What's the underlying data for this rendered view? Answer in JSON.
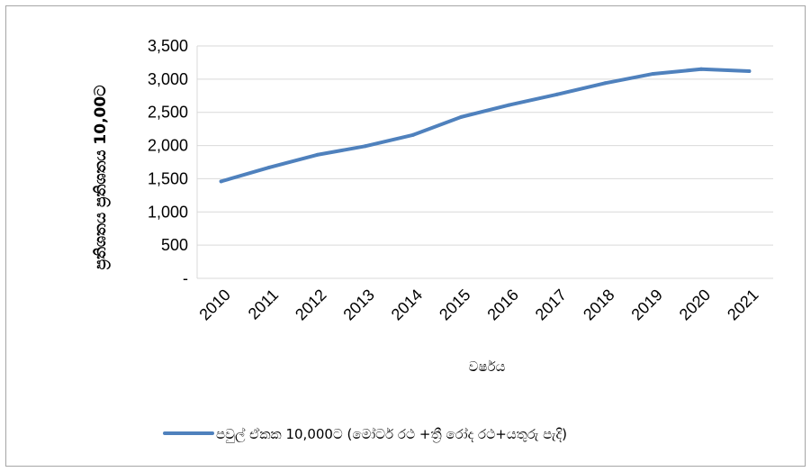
{
  "chart_data": {
    "type": "line",
    "x": [
      "2010",
      "2011",
      "2012",
      "2013",
      "2014",
      "2015",
      "2016",
      "2017",
      "2018",
      "2019",
      "2020",
      "2021"
    ],
    "series": [
      {
        "name": "පවුල් ඒකක 10,000ට (මෝටර් රථ +ත්‍රී රෝද රථ+යතුරු පැදි)",
        "values": [
          1460,
          1670,
          1860,
          1990,
          2160,
          2430,
          2610,
          2770,
          2940,
          3080,
          3150,
          3120
        ],
        "color": "#4f81bd"
      }
    ],
    "xlabel": "වර්ෂය",
    "ylabel": "ප්‍රතිශතය ප්‍රතිශතය 10,00ට",
    "ylim": [
      0,
      3500
    ],
    "yticks": [
      {
        "value": 0,
        "label": "-"
      },
      {
        "value": 500,
        "label": "500"
      },
      {
        "value": 1000,
        "label": "1,000"
      },
      {
        "value": 1500,
        "label": "1,500"
      },
      {
        "value": 2000,
        "label": "2,000"
      },
      {
        "value": 2500,
        "label": "2,500"
      },
      {
        "value": 3000,
        "label": "3,000"
      },
      {
        "value": 3500,
        "label": "3,500"
      }
    ],
    "grid": true,
    "legend_position": "bottom"
  }
}
